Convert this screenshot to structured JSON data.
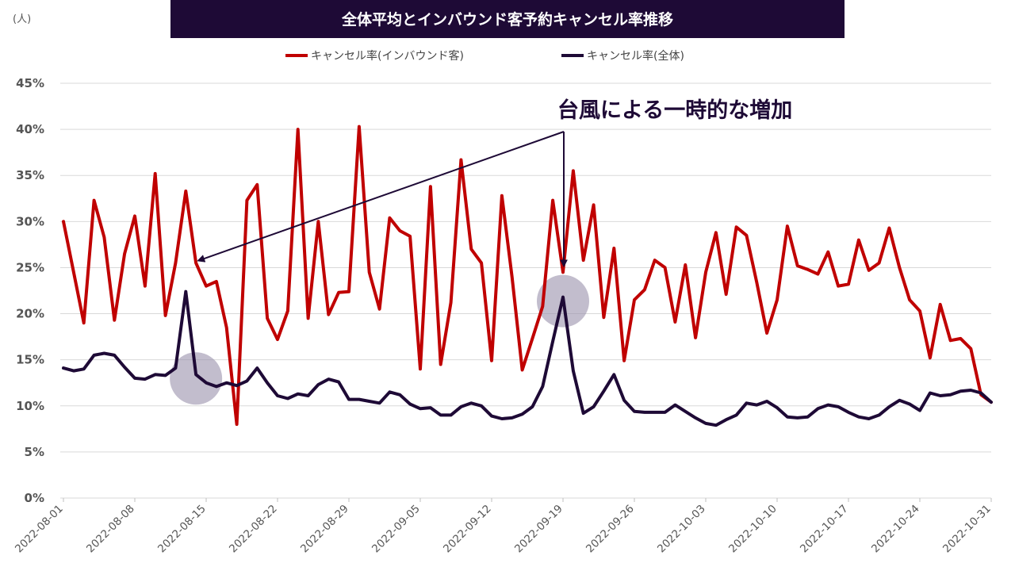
{
  "chart_data": {
    "type": "line",
    "title": "全体平均とインバウンド客予約キャンセル率推移",
    "unit_label": "(人)",
    "ylim": [
      0,
      45
    ],
    "y_ticks": [
      "0%",
      "5%",
      "10%",
      "15%",
      "20%",
      "25%",
      "30%",
      "35%",
      "40%",
      "45%"
    ],
    "x_ticks": [
      "2022-08-01",
      "2022-08-08",
      "2022-08-15",
      "2022-08-22",
      "2022-08-29",
      "2022-09-05",
      "2022-09-12",
      "2022-09-19",
      "2022-09-26",
      "2022-10-03",
      "2022-10-10",
      "2022-10-17",
      "2022-10-24",
      "2022-10-31"
    ],
    "x_start": "2022-08-01",
    "legend_position": "top-center",
    "grid": true,
    "annotation": {
      "text": "台風による一時的な増加",
      "highlight_dates": [
        "2022-08-14",
        "2022-09-19"
      ]
    },
    "series": [
      {
        "name": "キャンセル率(インバウンド客)",
        "color": "#c00000",
        "values": [
          30,
          24.5,
          19,
          32.3,
          28.3,
          19.3,
          26.5,
          30.6,
          23,
          35.2,
          19.8,
          25.5,
          33.3,
          25.5,
          23,
          23.5,
          18.5,
          8,
          32.3,
          34,
          19.5,
          17.2,
          20.3,
          40,
          19.5,
          30,
          19.9,
          22.3,
          22.4,
          40.3,
          24.5,
          20.5,
          30.4,
          29,
          28.4,
          14,
          33.8,
          14.5,
          21.2,
          36.7,
          27,
          25.5,
          14.9,
          32.8,
          24,
          13.9,
          17.3,
          20.8,
          32.3,
          24.5,
          35.5,
          25.8,
          31.8,
          19.6,
          27.1,
          14.9,
          21.5,
          22.6,
          25.8,
          25,
          19.1,
          25.3,
          17.4,
          24.5,
          28.8,
          22.1,
          29.4,
          28.5,
          23.4,
          17.9,
          21.5,
          29.5,
          25.2,
          24.8,
          24.3,
          26.7,
          23,
          23.2,
          28,
          24.7,
          25.5,
          29.3,
          25,
          21.5,
          20.3,
          15.2,
          21,
          17.1,
          17.3,
          16.2,
          11.2,
          10.4
        ]
      },
      {
        "name": "キャンセル率(全体)",
        "color": "#1e0a36",
        "values": [
          14.1,
          13.8,
          14,
          15.5,
          15.7,
          15.5,
          14.2,
          13,
          12.9,
          13.4,
          13.3,
          14.1,
          22.4,
          13.4,
          12.5,
          12.1,
          12.5,
          12.2,
          12.7,
          14.1,
          12.5,
          11.1,
          10.8,
          11.3,
          11.1,
          12.3,
          12.9,
          12.6,
          10.7,
          10.7,
          10.5,
          10.3,
          11.5,
          11.2,
          10.2,
          9.7,
          9.8,
          9,
          9,
          9.9,
          10.3,
          10,
          8.9,
          8.6,
          8.7,
          9.1,
          9.9,
          12.1,
          17,
          21.8,
          13.8,
          9.2,
          9.9,
          11.6,
          13.4,
          10.6,
          9.4,
          9.3,
          9.3,
          9.3,
          10.1,
          9.4,
          8.7,
          8.1,
          7.9,
          8.5,
          9,
          10.3,
          10.1,
          10.5,
          9.8,
          8.8,
          8.7,
          8.8,
          9.7,
          10.1,
          9.9,
          9.3,
          8.8,
          8.6,
          9,
          9.9,
          10.6,
          10.2,
          9.5,
          11.4,
          11.1,
          11.2,
          11.6,
          11.7,
          11.4,
          10.4
        ]
      }
    ]
  }
}
